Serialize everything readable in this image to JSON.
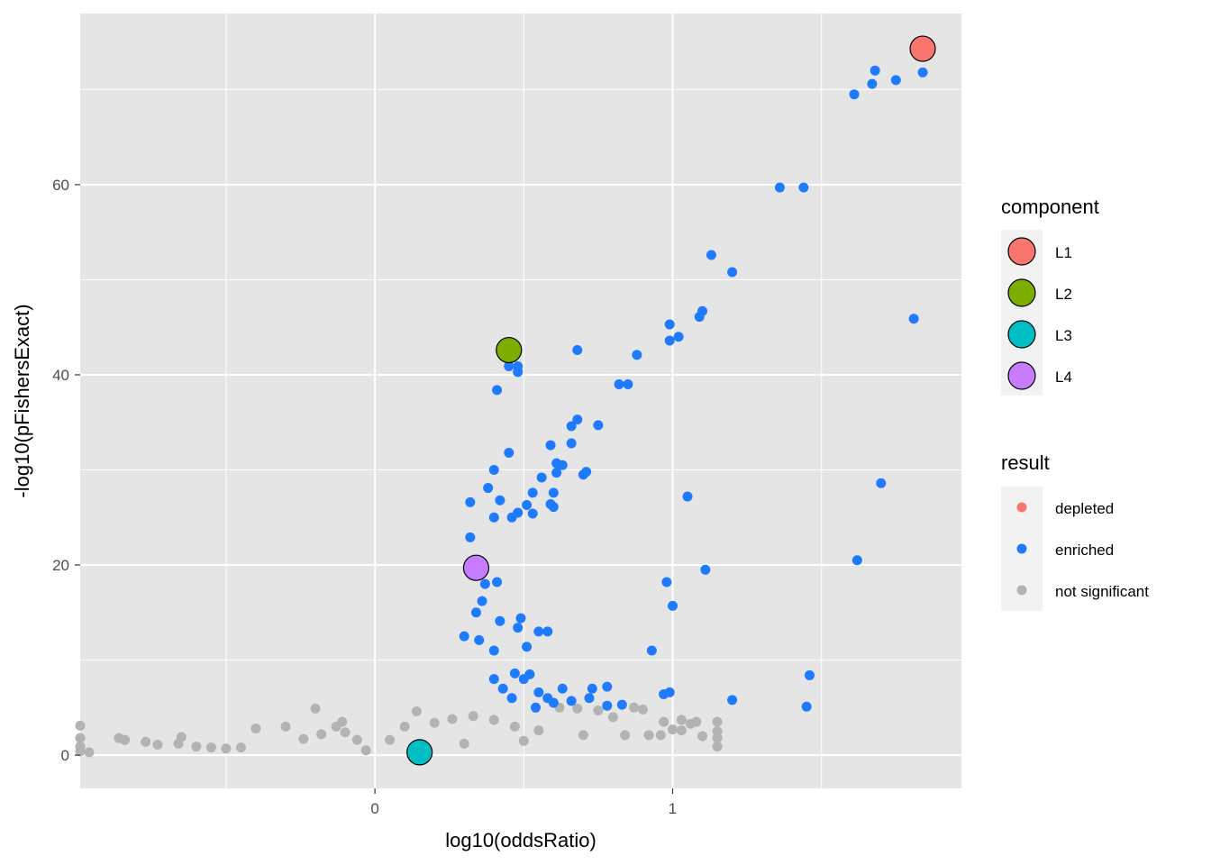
{
  "chart_data": {
    "type": "scatter",
    "xlabel": "log10(oddsRatio)",
    "ylabel": "-log10(pFishersExact)",
    "xlim": [
      -0.99,
      1.97
    ],
    "ylim": [
      -3.5,
      78
    ],
    "x_ticks": [
      0,
      1
    ],
    "x_tick_labels": [
      "0",
      "1"
    ],
    "x_minor_grid": [
      -0.5,
      0.5,
      1.5
    ],
    "y_ticks": [
      0,
      20,
      40,
      60
    ],
    "y_tick_labels": [
      "0",
      "20",
      "40",
      "60"
    ],
    "y_minor_grid": [
      10,
      30,
      50,
      70
    ],
    "grid": true,
    "panel_background": "#e5e5e5",
    "grid_color": "#ffffff",
    "result_legend": {
      "title": "result",
      "position": "right",
      "entries": [
        {
          "label": "depleted",
          "color": "#f8766d"
        },
        {
          "label": "enriched",
          "color": "#1e7bff"
        },
        {
          "label": "not significant",
          "color": "#b3b3b3"
        }
      ]
    },
    "component_legend": {
      "title": "component",
      "position": "right",
      "entries": [
        {
          "label": "L1",
          "color": "#f8766d"
        },
        {
          "label": "L2",
          "color": "#7cae00"
        },
        {
          "label": "L3",
          "color": "#00bfc4"
        },
        {
          "label": "L4",
          "color": "#c77cff"
        }
      ]
    },
    "series": [
      {
        "name": "enriched",
        "color": "#1e7bff",
        "points": [
          [
            1.84,
            71.8
          ],
          [
            1.75,
            71.0
          ],
          [
            1.67,
            70.6
          ],
          [
            1.61,
            69.5
          ],
          [
            1.68,
            72.0
          ],
          [
            1.36,
            59.7
          ],
          [
            1.44,
            59.7
          ],
          [
            1.13,
            52.6
          ],
          [
            1.2,
            50.8
          ],
          [
            1.1,
            46.7
          ],
          [
            1.09,
            46.1
          ],
          [
            0.99,
            45.3
          ],
          [
            1.02,
            44.0
          ],
          [
            0.99,
            43.6
          ],
          [
            1.81,
            45.9
          ],
          [
            0.68,
            42.6
          ],
          [
            0.88,
            42.1
          ],
          [
            0.48,
            40.9
          ],
          [
            0.45,
            40.9
          ],
          [
            0.48,
            40.3
          ],
          [
            0.82,
            39.0
          ],
          [
            0.85,
            39.0
          ],
          [
            0.41,
            38.4
          ],
          [
            0.68,
            35.3
          ],
          [
            0.75,
            34.7
          ],
          [
            0.66,
            34.6
          ],
          [
            0.66,
            32.8
          ],
          [
            0.59,
            32.6
          ],
          [
            0.45,
            31.8
          ],
          [
            0.61,
            30.7
          ],
          [
            0.63,
            30.5
          ],
          [
            0.61,
            29.7
          ],
          [
            0.7,
            29.5
          ],
          [
            0.71,
            29.8
          ],
          [
            0.4,
            30.0
          ],
          [
            0.56,
            29.2
          ],
          [
            0.38,
            28.1
          ],
          [
            0.6,
            27.6
          ],
          [
            0.53,
            27.6
          ],
          [
            1.05,
            27.2
          ],
          [
            1.7,
            28.6
          ],
          [
            0.42,
            26.8
          ],
          [
            0.32,
            26.6
          ],
          [
            0.51,
            26.3
          ],
          [
            0.59,
            26.4
          ],
          [
            0.6,
            26.1
          ],
          [
            0.48,
            25.5
          ],
          [
            0.53,
            25.4
          ],
          [
            0.46,
            25.0
          ],
          [
            0.4,
            25.0
          ],
          [
            0.32,
            22.9
          ],
          [
            1.62,
            20.5
          ],
          [
            1.11,
            19.5
          ],
          [
            0.98,
            18.2
          ],
          [
            0.41,
            18.2
          ],
          [
            0.37,
            18.0
          ],
          [
            1.0,
            15.7
          ],
          [
            0.36,
            16.2
          ],
          [
            0.34,
            15.0
          ],
          [
            0.49,
            14.4
          ],
          [
            0.48,
            13.4
          ],
          [
            0.55,
            13.0
          ],
          [
            0.58,
            13.0
          ],
          [
            0.42,
            14.1
          ],
          [
            0.51,
            11.4
          ],
          [
            0.4,
            11.0
          ],
          [
            0.93,
            11.0
          ],
          [
            0.35,
            12.1
          ],
          [
            0.3,
            12.5
          ],
          [
            0.52,
            8.5
          ],
          [
            0.47,
            8.6
          ],
          [
            0.5,
            8.0
          ],
          [
            0.4,
            8.0
          ],
          [
            1.46,
            8.4
          ],
          [
            0.73,
            7.0
          ],
          [
            0.78,
            7.2
          ],
          [
            0.97,
            6.4
          ],
          [
            0.99,
            6.6
          ],
          [
            0.72,
            6.0
          ],
          [
            0.58,
            6.0
          ],
          [
            0.63,
            7.0
          ],
          [
            0.54,
            5.0
          ],
          [
            0.66,
            5.7
          ],
          [
            1.2,
            5.8
          ],
          [
            1.45,
            5.1
          ],
          [
            0.83,
            5.3
          ],
          [
            0.78,
            5.2
          ],
          [
            0.6,
            5.5
          ],
          [
            0.55,
            6.6
          ],
          [
            0.43,
            7.0
          ],
          [
            0.46,
            6.0
          ]
        ]
      },
      {
        "name": "not significant",
        "color": "#b3b3b3",
        "points": [
          [
            -0.99,
            3.1
          ],
          [
            -0.99,
            1.8
          ],
          [
            -0.99,
            0.9
          ],
          [
            -0.99,
            0.4
          ],
          [
            -0.96,
            0.3
          ],
          [
            -0.86,
            1.8
          ],
          [
            -0.84,
            1.6
          ],
          [
            -0.77,
            1.4
          ],
          [
            -0.73,
            1.1
          ],
          [
            -0.66,
            1.2
          ],
          [
            -0.65,
            1.9
          ],
          [
            -0.6,
            0.9
          ],
          [
            -0.55,
            0.8
          ],
          [
            -0.5,
            0.7
          ],
          [
            -0.45,
            0.8
          ],
          [
            -0.4,
            2.8
          ],
          [
            -0.3,
            3.0
          ],
          [
            -0.24,
            1.7
          ],
          [
            -0.2,
            4.9
          ],
          [
            -0.18,
            2.2
          ],
          [
            -0.13,
            3.0
          ],
          [
            -0.11,
            3.5
          ],
          [
            -0.1,
            2.4
          ],
          [
            -0.06,
            1.6
          ],
          [
            -0.03,
            0.5
          ],
          [
            0.05,
            1.6
          ],
          [
            0.1,
            3.0
          ],
          [
            0.14,
            4.6
          ],
          [
            0.2,
            3.4
          ],
          [
            0.26,
            3.8
          ],
          [
            0.33,
            4.1
          ],
          [
            0.4,
            3.7
          ],
          [
            0.47,
            3.0
          ],
          [
            0.55,
            2.6
          ],
          [
            0.62,
            5.0
          ],
          [
            0.68,
            4.9
          ],
          [
            0.75,
            4.7
          ],
          [
            0.8,
            4.0
          ],
          [
            0.84,
            2.1
          ],
          [
            0.87,
            5.0
          ],
          [
            0.9,
            4.8
          ],
          [
            0.92,
            2.1
          ],
          [
            0.97,
            3.5
          ],
          [
            1.0,
            2.7
          ],
          [
            1.03,
            3.7
          ],
          [
            1.06,
            3.3
          ],
          [
            1.08,
            3.5
          ],
          [
            1.03,
            2.6
          ],
          [
            1.15,
            3.5
          ],
          [
            1.15,
            2.5
          ],
          [
            1.15,
            0.9
          ],
          [
            1.15,
            1.8
          ],
          [
            1.1,
            2.0
          ],
          [
            0.96,
            2.1
          ],
          [
            0.7,
            2.1
          ],
          [
            0.5,
            1.5
          ],
          [
            0.3,
            1.2
          ],
          [
            0.15,
            0.9
          ]
        ]
      }
    ],
    "highlighted": [
      {
        "component": "L1",
        "x": 1.84,
        "y": 74.3
      },
      {
        "component": "L2",
        "x": 0.45,
        "y": 42.6
      },
      {
        "component": "L3",
        "x": 0.15,
        "y": 0.3
      },
      {
        "component": "L4",
        "x": 0.34,
        "y": 19.7
      }
    ]
  }
}
